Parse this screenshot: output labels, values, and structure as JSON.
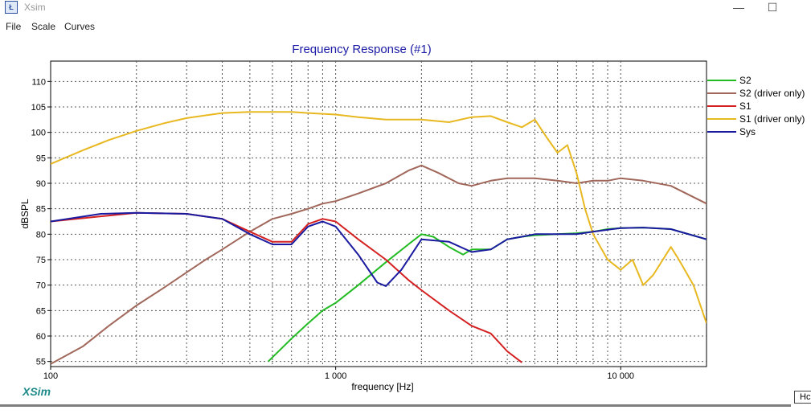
{
  "window": {
    "title": "Xsim",
    "icon": "xsim-app-icon",
    "minimize": "—",
    "maximize": "☐"
  },
  "menu": [
    "File",
    "Scale",
    "Curves"
  ],
  "chart_data": {
    "type": "line",
    "title": "Frequency Response (#1)",
    "xlabel": "frequency [Hz]",
    "ylabel": "dBSPL",
    "xscale": "log",
    "xlim": [
      100,
      20000
    ],
    "ylim": [
      54,
      114
    ],
    "x_tick_labels": [
      {
        "value": 100,
        "label": "100"
      },
      {
        "value": 1000,
        "label": "1 000"
      },
      {
        "value": 10000,
        "label": "10 000"
      }
    ],
    "y_ticks": [
      55,
      60,
      65,
      70,
      75,
      80,
      85,
      90,
      95,
      100,
      105,
      110
    ],
    "grid": true,
    "legend_position": "right",
    "series": [
      {
        "name": "S2",
        "color": "#22bb22",
        "x": [
          580,
          700,
          800,
          900,
          1000,
          1200,
          1500,
          1800,
          2000,
          2200,
          2500,
          2800,
          3000,
          3500,
          4000,
          4500,
          5000,
          6000,
          7000,
          8000,
          9000,
          10000,
          12000,
          15000,
          20000
        ],
        "y": [
          55,
          59.5,
          62.5,
          65,
          66.5,
          70,
          74.5,
          78,
          80,
          79.5,
          77.5,
          76,
          77,
          77,
          79,
          79.5,
          79.8,
          80,
          80.2,
          80.5,
          81,
          81.2,
          81.3,
          81,
          79
        ]
      },
      {
        "name": "S2 (driver only)",
        "color": "#a0675a",
        "x": [
          100,
          130,
          160,
          200,
          250,
          300,
          350,
          400,
          500,
          600,
          700,
          800,
          900,
          1000,
          1200,
          1500,
          1800,
          2000,
          2300,
          2700,
          3000,
          3500,
          4000,
          5000,
          6000,
          7000,
          8000,
          9000,
          10000,
          12000,
          15000,
          20000
        ],
        "y": [
          54.5,
          58,
          62,
          66,
          69.5,
          72.5,
          75,
          77,
          80.5,
          83,
          84,
          85,
          86,
          86.5,
          88,
          90,
          92.5,
          93.5,
          92,
          90,
          89.5,
          90.5,
          91,
          91,
          90.5,
          90,
          90.5,
          90.5,
          91,
          90.5,
          89.5,
          86
        ]
      },
      {
        "name": "S1",
        "color": "#d42020",
        "x": [
          100,
          200,
          300,
          400,
          500,
          600,
          700,
          800,
          900,
          1000,
          1200,
          1500,
          1800,
          2000,
          2500,
          3000,
          3500,
          4000,
          4500
        ],
        "y": [
          82.5,
          84.2,
          84,
          83,
          80.5,
          78.5,
          78.5,
          82,
          83,
          82.5,
          79,
          75,
          71,
          69,
          65,
          62,
          60.5,
          57,
          54.8
        ]
      },
      {
        "name": "S1 (driver only)",
        "color": "#e8b820",
        "x": [
          100,
          130,
          160,
          200,
          250,
          300,
          400,
          500,
          600,
          700,
          800,
          1000,
          1200,
          1500,
          2000,
          2500,
          3000,
          3500,
          4000,
          4500,
          5000,
          5500,
          6000,
          6500,
          7000,
          7500,
          8000,
          9000,
          10000,
          11000,
          12000,
          13000,
          15000,
          16000,
          18000,
          20000
        ],
        "y": [
          93.8,
          96.5,
          98.5,
          100.3,
          101.8,
          102.8,
          103.8,
          104,
          104,
          104,
          103.8,
          103.5,
          103,
          102.5,
          102.5,
          102,
          103,
          103.2,
          102,
          101,
          102.5,
          99,
          96,
          97.5,
          92,
          85,
          80,
          75,
          73,
          75,
          70,
          72,
          77.5,
          75,
          70,
          62.5
        ]
      },
      {
        "name": "Sys",
        "color": "#1a1aa0",
        "x": [
          100,
          150,
          200,
          300,
          400,
          500,
          600,
          700,
          800,
          900,
          1000,
          1200,
          1400,
          1500,
          1700,
          2000,
          2500,
          3000,
          3500,
          4000,
          4500,
          5000,
          6000,
          7000,
          8000,
          10000,
          12000,
          15000,
          20000
        ],
        "y": [
          82.5,
          84,
          84.2,
          84,
          83,
          80,
          78,
          78,
          81.5,
          82.5,
          81.5,
          76,
          70.5,
          69.8,
          73,
          79,
          78.5,
          76.5,
          77,
          79,
          79.5,
          80,
          80,
          80,
          80.5,
          81.2,
          81.3,
          81,
          79
        ]
      }
    ]
  },
  "footer": {
    "logo": "XSim",
    "corner_button": "Hc"
  }
}
